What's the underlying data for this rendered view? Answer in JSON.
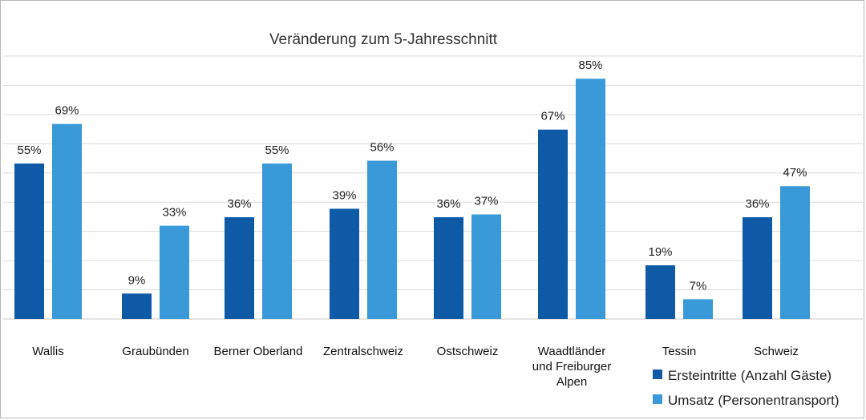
{
  "chart_data": {
    "type": "bar",
    "title": "Veränderung zum 5-Jahresschnitt",
    "categories": [
      "Wallis",
      "Graubünden",
      "Berner Oberland",
      "Zentralschweiz",
      "Ostschweiz",
      "Waadtländer und Freiburger Alpen",
      "Tessin",
      "Schweiz"
    ],
    "category_lines": [
      [
        "Wallis"
      ],
      [
        "Graubünden"
      ],
      [
        "Berner Oberland"
      ],
      [
        "Zentralschweiz"
      ],
      [
        "Ostschweiz"
      ],
      [
        "Waadtländer",
        "und Freiburger",
        "Alpen"
      ],
      [
        "Tessin"
      ],
      [
        "Schweiz"
      ]
    ],
    "series": [
      {
        "name": "Ersteintritte (Anzahl Gäste)",
        "color": "#0e5aa7",
        "values": [
          55,
          9,
          36,
          39,
          36,
          67,
          19,
          36
        ],
        "labels": [
          "55%",
          "9%",
          "36%",
          "39%",
          "36%",
          "67%",
          "19%",
          "36%"
        ]
      },
      {
        "name": "Umsatz (Personentransport)",
        "color": "#3a9ad9",
        "values": [
          69,
          33,
          55,
          56,
          37,
          85,
          7,
          47
        ],
        "labels": [
          "69%",
          "33%",
          "55%",
          "56%",
          "37%",
          "85%",
          "7%",
          "47%"
        ]
      }
    ],
    "unit": "%",
    "ylim": [
      0,
      93
    ],
    "grid": true,
    "legend_position": "bottom-right"
  }
}
